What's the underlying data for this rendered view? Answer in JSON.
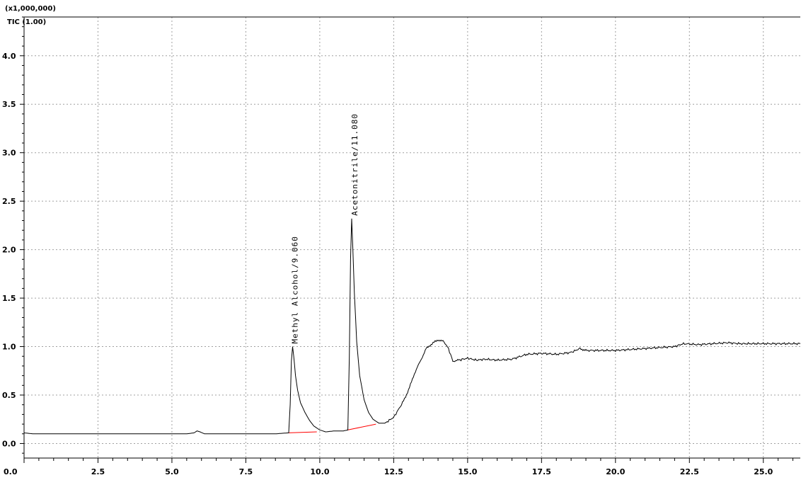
{
  "chart_data": {
    "type": "line",
    "title": "",
    "xlabel": "",
    "ylabel": "",
    "scale_label": "(x1,000,000)",
    "trace_label": "TIC (1.00)",
    "xlim": [
      0.0,
      26.25
    ],
    "ylim": [
      -0.15,
      4.4
    ],
    "x_ticks": [
      0.0,
      2.5,
      5.0,
      7.5,
      10.0,
      12.5,
      15.0,
      17.5,
      20.0,
      22.5,
      25.0
    ],
    "x_tick_labels": [
      "0.0",
      "2.5",
      "5.0",
      "7.5",
      "10.0",
      "12.5",
      "15.0",
      "17.5",
      "20.0",
      "22.5",
      "25.0"
    ],
    "y_ticks": [
      0.0,
      0.5,
      1.0,
      1.5,
      2.0,
      2.5,
      3.0,
      3.5,
      4.0
    ],
    "y_tick_labels": [
      "0.0",
      "0.5",
      "1.0",
      "1.5",
      "2.0",
      "2.5",
      "3.0",
      "3.5",
      "4.0"
    ],
    "grid": true,
    "colors": {
      "trace": "#000000",
      "baseline": "#ff0000",
      "grid": "#a0a0a0"
    },
    "series": [
      {
        "x": [
          0.0,
          0.3,
          0.6,
          1.0,
          1.5,
          2.0,
          2.5,
          3.0,
          3.5,
          4.0,
          4.5,
          5.0,
          5.5,
          5.75,
          5.85,
          5.95,
          6.1,
          6.3,
          6.6,
          7.0,
          7.5,
          8.0,
          8.5,
          8.95,
          9.0,
          9.04,
          9.08,
          9.12,
          9.18,
          9.25,
          9.35,
          9.5,
          9.65,
          9.8,
          10.0,
          10.2,
          10.5,
          10.8,
          10.95,
          11.0,
          11.04,
          11.08,
          11.12,
          11.17,
          11.25,
          11.35,
          11.5,
          11.65,
          11.8,
          12.0,
          12.2,
          12.5,
          12.8,
          13.0,
          13.2,
          13.4,
          13.6,
          13.8,
          14.0,
          14.2,
          14.35,
          14.5,
          14.7,
          15.0,
          15.3,
          15.6,
          16.0,
          16.5,
          17.0,
          17.5,
          18.0,
          18.5,
          18.8,
          19.0,
          19.5,
          20.0,
          20.5,
          21.0,
          21.5,
          22.0,
          22.3,
          22.8,
          23.3,
          23.8,
          24.2,
          24.6,
          25.0,
          25.5,
          26.0,
          26.25
        ],
        "y": [
          0.11,
          0.1,
          0.1,
          0.1,
          0.1,
          0.1,
          0.1,
          0.1,
          0.1,
          0.1,
          0.1,
          0.1,
          0.1,
          0.11,
          0.13,
          0.12,
          0.1,
          0.1,
          0.1,
          0.1,
          0.1,
          0.1,
          0.1,
          0.11,
          0.4,
          0.85,
          1.0,
          0.9,
          0.7,
          0.55,
          0.42,
          0.32,
          0.24,
          0.18,
          0.14,
          0.12,
          0.13,
          0.13,
          0.14,
          0.9,
          1.9,
          2.32,
          2.0,
          1.55,
          1.05,
          0.7,
          0.45,
          0.32,
          0.25,
          0.21,
          0.21,
          0.27,
          0.42,
          0.55,
          0.72,
          0.85,
          0.98,
          1.03,
          1.07,
          1.05,
          0.98,
          0.85,
          0.86,
          0.88,
          0.86,
          0.87,
          0.86,
          0.87,
          0.92,
          0.93,
          0.92,
          0.94,
          0.98,
          0.96,
          0.96,
          0.96,
          0.97,
          0.98,
          0.99,
          1.0,
          1.03,
          1.02,
          1.03,
          1.04,
          1.03,
          1.03,
          1.03,
          1.03,
          1.03,
          1.03
        ]
      }
    ],
    "baselines": [
      {
        "x": [
          8.95,
          9.9
        ],
        "y": [
          0.11,
          0.12
        ]
      },
      {
        "x": [
          10.95,
          11.9
        ],
        "y": [
          0.14,
          0.2
        ]
      }
    ],
    "annotations": [
      {
        "text": "Methyl Alcohol/9.060",
        "x": 9.06,
        "y": 1.0
      },
      {
        "text": "Acetonitrile/11.080",
        "x": 11.08,
        "y": 2.32
      }
    ]
  }
}
